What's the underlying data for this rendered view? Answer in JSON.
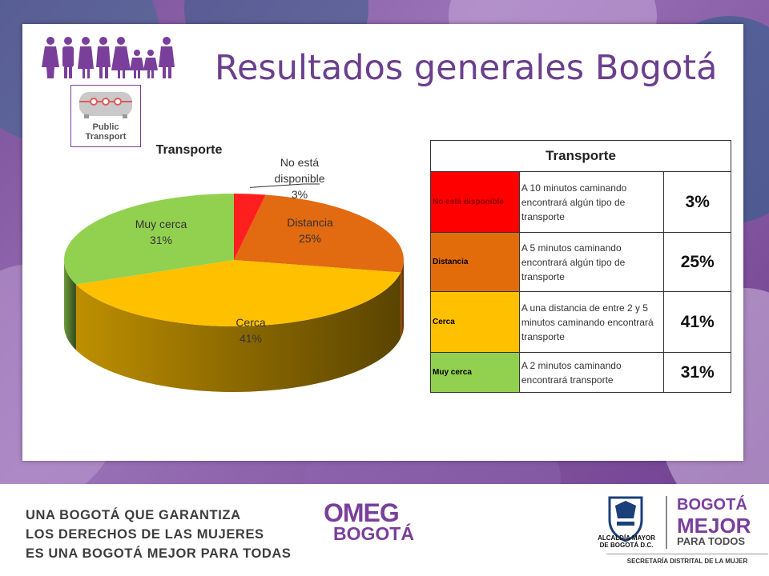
{
  "slide": {
    "title": "Resultados generales Bogotá",
    "icon_label_line1": "Public",
    "icon_label_line2": "Transport"
  },
  "chart_data": {
    "type": "pie",
    "title": "Transporte",
    "categories": [
      "No está disponible",
      "Distancia",
      "Cerca",
      "Muy cerca"
    ],
    "values": [
      3,
      25,
      41,
      31
    ],
    "data_labels": [
      [
        "No está",
        "disponible",
        "3%"
      ],
      [
        "Distancia",
        "25%"
      ],
      [
        "Cerca",
        "41%"
      ],
      [
        "Muy cerca",
        "31%"
      ]
    ],
    "colors": [
      "#ff1f1f",
      "#e26a10",
      "#ffc000",
      "#92d050"
    ],
    "style": "3d"
  },
  "table": {
    "header": "Transporte",
    "rows": [
      {
        "category": "No está disponible",
        "description": "A 10 minutos caminando encontrará algún tipo de transporte",
        "percent": "3%",
        "color": "#ff0000",
        "text_color": "#8b0000"
      },
      {
        "category": "Distancia",
        "description": "A 5 minutos caminando encontrará algún tipo de transporte",
        "percent": "25%",
        "color": "#e36c0a",
        "text_color": "#000000"
      },
      {
        "category": "Cerca",
        "description": "A una distancia de entre 2 y 5 minutos caminando encontrará transporte",
        "percent": "41%",
        "color": "#ffc000",
        "text_color": "#000000"
      },
      {
        "category": "Muy cerca",
        "description": "A 2 minutos caminando encontrará transporte",
        "percent": "31%",
        "color": "#92d050",
        "text_color": "#000000"
      }
    ]
  },
  "footer": {
    "slogan_line1": "UNA BOGOTÁ QUE GARANTIZA",
    "slogan_line2": "LOS DERECHOS DE LAS MUJERES",
    "slogan_line3": "ES UNA BOGOTÁ MEJOR PARA TODAS",
    "omeg_line1": "OMEG",
    "omeg_line2": "BOGOTÁ",
    "alcaldia_line1": "ALCALDÍA MAYOR",
    "alcaldia_line2": "DE BOGOTÁ D.C.",
    "bmpt_line1": "BOGOTÁ",
    "bmpt_line2": "MEJOR",
    "bmpt_line3": "PARA TODOS",
    "secretaria": "SECRETARÍA DISTRITAL DE LA MUJER"
  }
}
